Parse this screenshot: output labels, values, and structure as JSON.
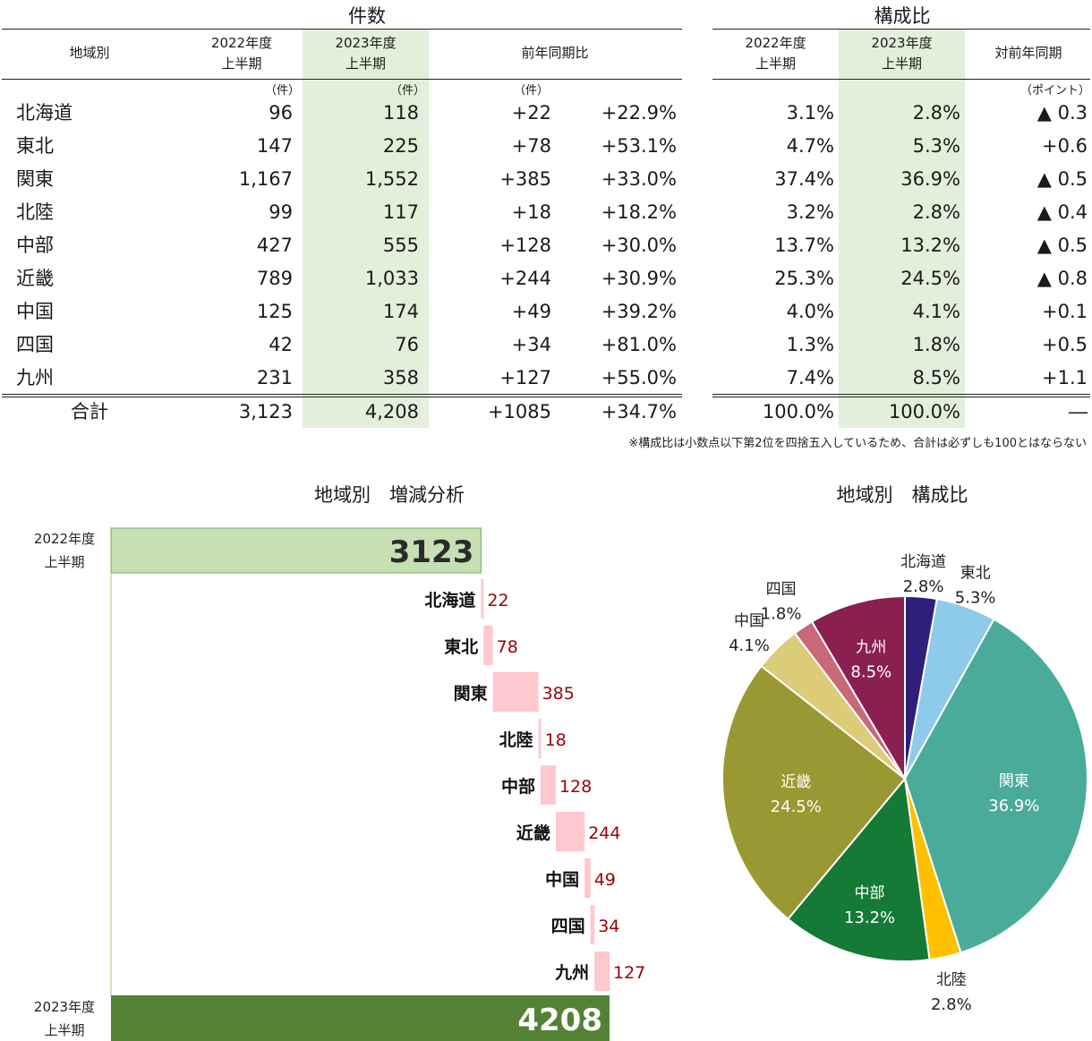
{
  "table": {
    "counts_title": "件数",
    "share_title": "構成比",
    "headers": {
      "region": "地域別",
      "h2022": "2022年度\n上半期",
      "h2023": "2023年度\n上半期",
      "yoy": "前年同期比",
      "s2022": "2022年度\n上半期",
      "s2023": "2023年度\n上半期",
      "syoy": "対前年同期"
    },
    "units": {
      "u2022": "（件）",
      "u2023": "（件）",
      "udiff": "（件）",
      "upoint": "（ポイント）"
    },
    "rows": [
      {
        "region": "北海道",
        "c2022": "96",
        "c2023": "118",
        "diff": "+22",
        "pct": "+22.9%",
        "s2022": "3.1%",
        "s2023": "2.8%",
        "sdiff": "▲ 0.3"
      },
      {
        "region": "東北",
        "c2022": "147",
        "c2023": "225",
        "diff": "+78",
        "pct": "+53.1%",
        "s2022": "4.7%",
        "s2023": "5.3%",
        "sdiff": "+0.6"
      },
      {
        "region": "関東",
        "c2022": "1,167",
        "c2023": "1,552",
        "diff": "+385",
        "pct": "+33.0%",
        "s2022": "37.4%",
        "s2023": "36.9%",
        "sdiff": "▲ 0.5"
      },
      {
        "region": "北陸",
        "c2022": "99",
        "c2023": "117",
        "diff": "+18",
        "pct": "+18.2%",
        "s2022": "3.2%",
        "s2023": "2.8%",
        "sdiff": "▲ 0.4"
      },
      {
        "region": "中部",
        "c2022": "427",
        "c2023": "555",
        "diff": "+128",
        "pct": "+30.0%",
        "s2022": "13.7%",
        "s2023": "13.2%",
        "sdiff": "▲ 0.5"
      },
      {
        "region": "近畿",
        "c2022": "789",
        "c2023": "1,033",
        "diff": "+244",
        "pct": "+30.9%",
        "s2022": "25.3%",
        "s2023": "24.5%",
        "sdiff": "▲ 0.8"
      },
      {
        "region": "中国",
        "c2022": "125",
        "c2023": "174",
        "diff": "+49",
        "pct": "+39.2%",
        "s2022": "4.0%",
        "s2023": "4.1%",
        "sdiff": "+0.1"
      },
      {
        "region": "四国",
        "c2022": "42",
        "c2023": "76",
        "diff": "+34",
        "pct": "+81.0%",
        "s2022": "1.3%",
        "s2023": "1.8%",
        "sdiff": "+0.5"
      },
      {
        "region": "九州",
        "c2022": "231",
        "c2023": "358",
        "diff": "+127",
        "pct": "+55.0%",
        "s2022": "7.4%",
        "s2023": "8.5%",
        "sdiff": "+1.1"
      }
    ],
    "total": {
      "region": "合計",
      "c2022": "3,123",
      "c2023": "4,208",
      "diff": "+1085",
      "pct": "+34.7%",
      "s2022": "100.0%",
      "s2023": "100.0%",
      "sdiff": "―"
    },
    "note": "※構成比は小数点以下第2位を四捨五入しているため、合計は必ずしも100とはならない"
  },
  "chart_data": [
    {
      "type": "bar",
      "subtype": "waterfall",
      "title": "地域別　増減分析",
      "start": {
        "label": "2022年度\n上半期",
        "value": 3123
      },
      "end": {
        "label": "2023年度\n上半期",
        "value": 4208
      },
      "categories": [
        "北海道",
        "東北",
        "関東",
        "北陸",
        "中部",
        "近畿",
        "中国",
        "四国",
        "九州"
      ],
      "values": [
        22,
        78,
        385,
        18,
        128,
        244,
        49,
        34,
        127
      ],
      "colors": {
        "start": "#c6e0b4",
        "end": "#548235",
        "delta": "#ffc7ce",
        "delta_label": "#9c0006"
      }
    },
    {
      "type": "pie",
      "title": "地域別　構成比",
      "slices": [
        {
          "label": "北海道",
          "value": 2.8,
          "text": "2.8%",
          "color": "#2f1f7a"
        },
        {
          "label": "東北",
          "value": 5.3,
          "text": "5.3%",
          "color": "#8ecbeb"
        },
        {
          "label": "関東",
          "value": 36.9,
          "text": "36.9%",
          "color": "#4aab9a"
        },
        {
          "label": "北陸",
          "value": 2.8,
          "text": "2.8%",
          "color": "#ffc000"
        },
        {
          "label": "中部",
          "value": 13.2,
          "text": "13.2%",
          "color": "#157a35"
        },
        {
          "label": "近畿",
          "value": 24.5,
          "text": "24.5%",
          "color": "#9a9832"
        },
        {
          "label": "中国",
          "value": 4.1,
          "text": "4.1%",
          "color": "#dccb78"
        },
        {
          "label": "四国",
          "value": 1.8,
          "text": "1.8%",
          "color": "#c86878"
        },
        {
          "label": "九州",
          "value": 8.5,
          "text": "8.5%",
          "color": "#8a2050"
        }
      ]
    }
  ]
}
